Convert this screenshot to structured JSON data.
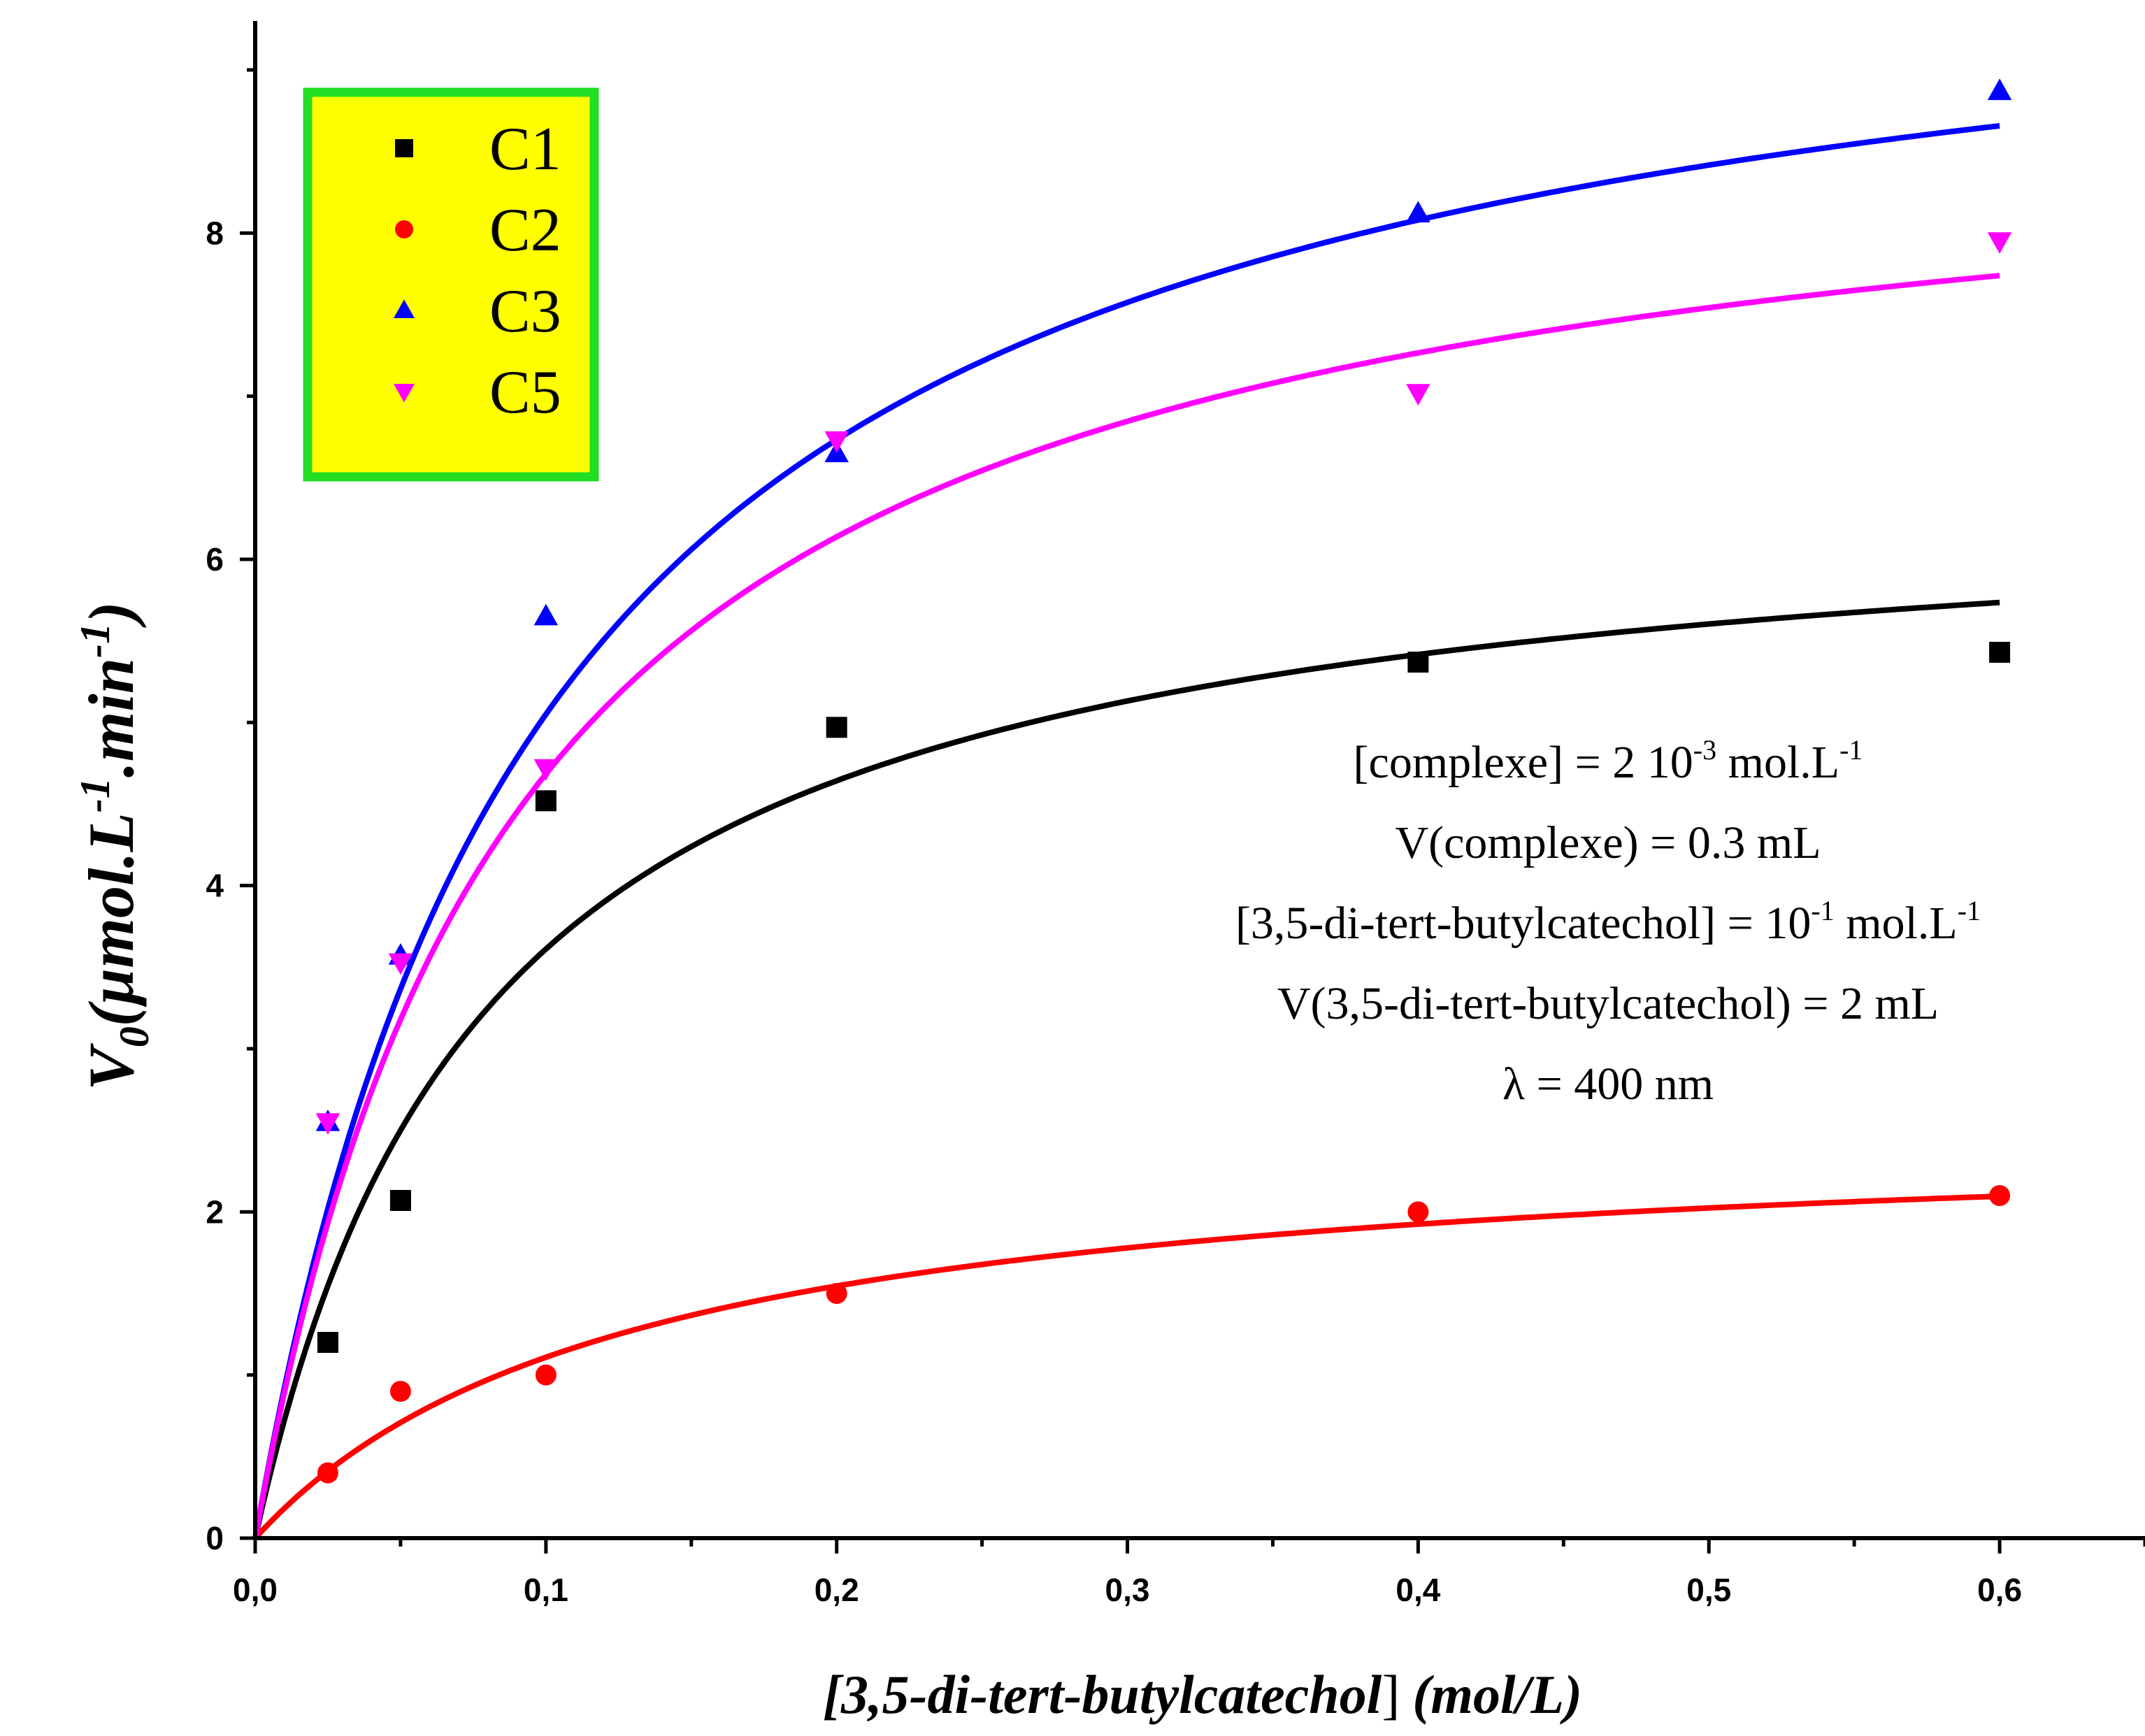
{
  "chart_data": {
    "type": "scatter",
    "xlabel": "[3,5-di-tert-butylcatechol] (mol/L)",
    "ylabel": "V0(µmol.L-1.min-1)",
    "xlim": [
      0,
      0.65
    ],
    "ylim": [
      0,
      9.3
    ],
    "x_ticks": [
      "0,0",
      "0,1",
      "0,2",
      "0,3",
      "0,4",
      "0,5",
      "0,6"
    ],
    "y_ticks": [
      "0",
      "2",
      "4",
      "6",
      "8"
    ],
    "grid": false,
    "legend_position": "top-left",
    "series": [
      {
        "name": "C1",
        "color": "#000000",
        "marker": "square",
        "x": [
          0.025,
          0.05,
          0.1,
          0.2,
          0.4,
          0.6
        ],
        "y": [
          1.2,
          2.07,
          4.52,
          4.97,
          5.37,
          5.43
        ],
        "fit": {
          "vmax": 6.5,
          "km": 0.08
        }
      },
      {
        "name": "C2",
        "color": "#ff0000",
        "marker": "circle",
        "x": [
          0.025,
          0.05,
          0.1,
          0.2,
          0.4,
          0.6
        ],
        "y": [
          0.4,
          0.9,
          1.0,
          1.5,
          2.0,
          2.1
        ],
        "fit": {
          "vmax": 2.55,
          "km": 0.13
        }
      },
      {
        "name": "C3",
        "color": "#0000ff",
        "marker": "triangle-up",
        "x": [
          0.025,
          0.05,
          0.1,
          0.2,
          0.4,
          0.6
        ],
        "y": [
          2.55,
          3.57,
          5.65,
          6.65,
          8.12,
          8.87
        ],
        "fit": {
          "vmax": 10.1,
          "km": 0.1
        }
      },
      {
        "name": "C5",
        "color": "#ff00ff",
        "marker": "triangle-down",
        "x": [
          0.025,
          0.05,
          0.1,
          0.2,
          0.4,
          0.6
        ],
        "y": [
          2.55,
          3.53,
          4.72,
          6.73,
          7.02,
          7.95
        ],
        "fit": {
          "vmax": 8.9,
          "km": 0.09
        }
      }
    ],
    "annotations": [
      {
        "parts": [
          "[complexe] =  2 10",
          "-3",
          " mol.L",
          "-1"
        ]
      },
      {
        "parts": [
          "V(complexe) = 0.3 mL"
        ]
      },
      {
        "parts": [
          "[3,5-di-tert-butylcatechol] = 10",
          "-1",
          " mol.L",
          "-1"
        ]
      },
      {
        "parts": [
          "V(3,5-di-tert-butylcatechol) = 2 mL"
        ]
      },
      {
        "parts": [
          "λ = 400 nm"
        ]
      }
    ]
  },
  "axis": {
    "x_title_main": "[3,5-di-tert-butylcatechol",
    "x_title_bracket": "]",
    "x_title_unit": "(mol/L)",
    "y_title_v": "V",
    "y_title_sub": "0",
    "y_title_unit_a": "(µmol.L",
    "y_title_exp1": "-1",
    "y_title_unit_b": ".min",
    "y_title_exp2": "-1",
    "y_title_close": ")"
  },
  "legend": {
    "border_color": "#22dd22",
    "background_color": "#ffff00"
  }
}
